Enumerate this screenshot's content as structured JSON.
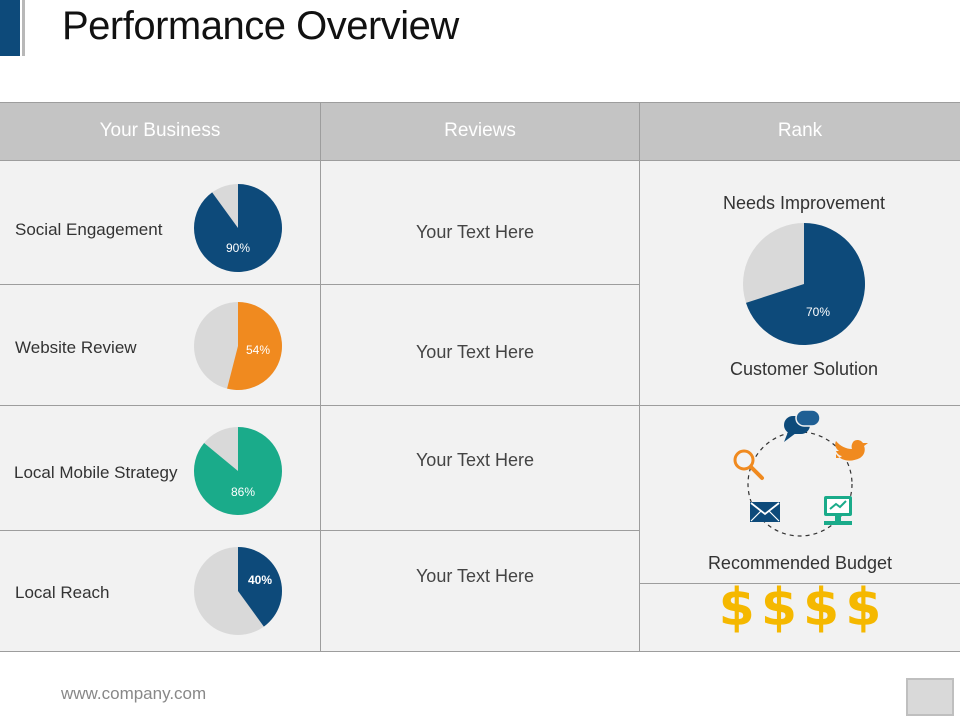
{
  "title": "Performance Overview",
  "headers": [
    "Your Business",
    "Reviews",
    "Rank"
  ],
  "rows": [
    {
      "label": "Social Engagement",
      "percent": 90,
      "percent_label": "90%",
      "color": "#0d4a7a",
      "review": "Your Text Here"
    },
    {
      "label": "Website Review",
      "percent": 54,
      "percent_label": "54%",
      "color": "#f08a1f",
      "review": "Your Text Here"
    },
    {
      "label": "Local Mobile Strategy",
      "percent": 86,
      "percent_label": "86%",
      "color": "#1aab8a",
      "review": "Your Text Here"
    },
    {
      "label": "Local Reach",
      "percent": 40,
      "percent_label": "40%",
      "color": "#0d4a7a",
      "review": "Your Text Here"
    }
  ],
  "rank": {
    "top_label": "Needs Improvement",
    "pie_percent": 70,
    "pie_label": "70%",
    "bottom_label": "Customer Solution",
    "icons": [
      "chat-bubble-icon",
      "twitter-bird-icon",
      "presentation-screen-icon",
      "envelope-icon",
      "magnifier-icon"
    ],
    "budget_label": "Recommended Budget",
    "budget_symbols": [
      "$",
      "$",
      "$",
      "$"
    ]
  },
  "colors": {
    "navy": "#0d4a7a",
    "orange": "#f08a1f",
    "teal": "#1aab8a",
    "pie_gray": "#d9d9d9",
    "gold": "#f5b800"
  },
  "footer": "www.company.com"
}
